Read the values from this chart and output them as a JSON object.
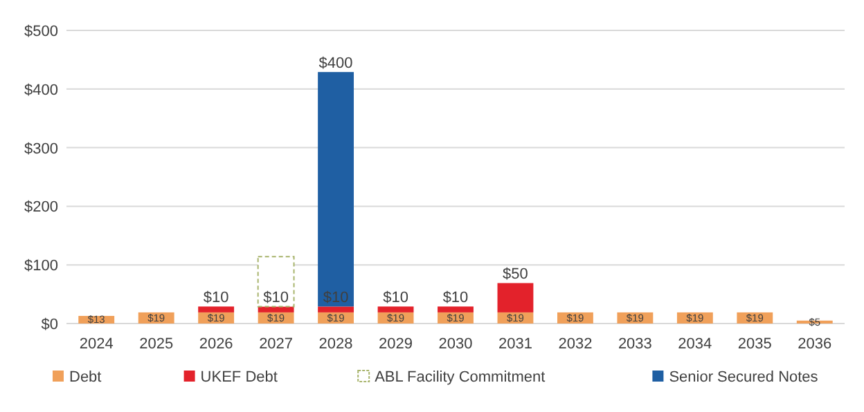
{
  "chart_data": {
    "type": "bar",
    "stacked": true,
    "categories": [
      "2024",
      "2025",
      "2026",
      "2027",
      "2028",
      "2029",
      "2030",
      "2031",
      "2032",
      "2033",
      "2034",
      "2035",
      "2036"
    ],
    "series": [
      {
        "name": "Debt",
        "color": "#f0a05a",
        "values": [
          13,
          19,
          19,
          19,
          19,
          19,
          19,
          19,
          19,
          19,
          19,
          19,
          5
        ],
        "value_labels": [
          "$13",
          "$19",
          "$19",
          "$19",
          "$19",
          "$19",
          "$19",
          "$19",
          "$19",
          "$19",
          "$19",
          "$19",
          "$5"
        ]
      },
      {
        "name": "UKEF Debt",
        "color": "#e3222b",
        "values": [
          null,
          null,
          10,
          10,
          10,
          10,
          10,
          50,
          null,
          null,
          null,
          null,
          null
        ],
        "value_labels": [
          null,
          null,
          "$10",
          "$10",
          "$10",
          "$10",
          "$10",
          "$50",
          null,
          null,
          null,
          null,
          null
        ]
      },
      {
        "name": "ABL Facility Commitment",
        "color": "#a9b56e",
        "line_style": "dashed",
        "values": [
          null,
          null,
          null,
          85,
          null,
          null,
          null,
          null,
          null,
          null,
          null,
          null,
          null
        ]
      },
      {
        "name": "Senior Secured Notes",
        "color": "#1f5fa3",
        "values": [
          null,
          null,
          null,
          null,
          400,
          null,
          null,
          null,
          null,
          null,
          null,
          null,
          null
        ],
        "value_labels": [
          null,
          null,
          null,
          null,
          "$400",
          null,
          null,
          null,
          null,
          null,
          null,
          null,
          null
        ]
      }
    ],
    "ylim": [
      0,
      500
    ],
    "yticks": [
      {
        "value": 0,
        "label": "$0"
      },
      {
        "value": 100,
        "label": "$100"
      },
      {
        "value": 200,
        "label": "$200"
      },
      {
        "value": 300,
        "label": "$300"
      },
      {
        "value": 400,
        "label": "$400"
      },
      {
        "value": 500,
        "label": "$500"
      }
    ],
    "grid": "y",
    "legend": "bottom"
  }
}
